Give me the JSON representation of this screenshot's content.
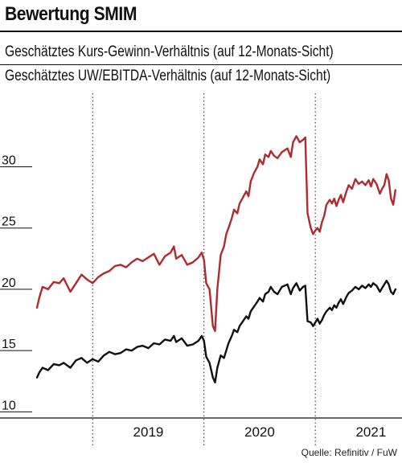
{
  "title": "Bewertung SMIM",
  "source": "Quelle: Refinitiv / FuW",
  "legend": [
    {
      "label": "Geschätztes Kurs-Gewinn-Verhältnis (auf 12-Monats-Sicht)",
      "color": "#b02a30"
    },
    {
      "label": "Geschätztes UW/EBITDA-Verhältnis (auf 12-Monats-Sicht)",
      "color": "#111111"
    }
  ],
  "chart_data": {
    "type": "line",
    "x_unit": "year (decimal)",
    "xlim": [
      2018.5,
      2021.75
    ],
    "ylim": [
      9.5,
      36
    ],
    "yticks": [
      10,
      15,
      20,
      25,
      30
    ],
    "xtick_labels": [
      {
        "label": "2019",
        "center": 2019.5
      },
      {
        "label": "2020",
        "center": 2020.5
      },
      {
        "label": "2021",
        "center": 2021.5
      }
    ],
    "grid": "vertical dotted lines at year boundaries (2019, 2020, 2021)",
    "series": [
      {
        "name": "Geschätztes Kurs-Gewinn-Verhältnis (auf 12-Monats-Sicht)",
        "color": "#b02a30",
        "points": [
          [
            2018.5,
            18.5
          ],
          [
            2018.52,
            19.3
          ],
          [
            2018.55,
            20.2
          ],
          [
            2018.6,
            20.0
          ],
          [
            2018.65,
            20.6
          ],
          [
            2018.7,
            20.5
          ],
          [
            2018.74,
            20.9
          ],
          [
            2018.8,
            19.8
          ],
          [
            2018.85,
            20.5
          ],
          [
            2018.9,
            21.2
          ],
          [
            2018.95,
            20.8
          ],
          [
            2019.0,
            20.5
          ],
          [
            2019.05,
            21.0
          ],
          [
            2019.1,
            21.3
          ],
          [
            2019.15,
            21.5
          ],
          [
            2019.2,
            21.9
          ],
          [
            2019.25,
            22.0
          ],
          [
            2019.3,
            21.8
          ],
          [
            2019.35,
            22.2
          ],
          [
            2019.4,
            22.5
          ],
          [
            2019.45,
            22.3
          ],
          [
            2019.5,
            22.6
          ],
          [
            2019.55,
            22.9
          ],
          [
            2019.6,
            22.0
          ],
          [
            2019.65,
            22.7
          ],
          [
            2019.7,
            23.0
          ],
          [
            2019.73,
            23.5
          ],
          [
            2019.75,
            22.5
          ],
          [
            2019.8,
            22.8
          ],
          [
            2019.85,
            22.0
          ],
          [
            2019.9,
            22.2
          ],
          [
            2019.95,
            22.6
          ],
          [
            2019.98,
            23.0
          ],
          [
            2020.0,
            22.4
          ],
          [
            2020.02,
            20.5
          ],
          [
            2020.05,
            20.0
          ],
          [
            2020.08,
            17.0
          ],
          [
            2020.1,
            16.6
          ],
          [
            2020.12,
            20.0
          ],
          [
            2020.15,
            22.8
          ],
          [
            2020.18,
            23.5
          ],
          [
            2020.2,
            24.5
          ],
          [
            2020.22,
            25.0
          ],
          [
            2020.25,
            25.8
          ],
          [
            2020.27,
            26.5
          ],
          [
            2020.3,
            26.2
          ],
          [
            2020.32,
            27.0
          ],
          [
            2020.35,
            27.5
          ],
          [
            2020.38,
            28.0
          ],
          [
            2020.4,
            27.6
          ],
          [
            2020.42,
            28.8
          ],
          [
            2020.45,
            29.5
          ],
          [
            2020.48,
            30.0
          ],
          [
            2020.5,
            30.6
          ],
          [
            2020.53,
            30.2
          ],
          [
            2020.55,
            31.0
          ],
          [
            2020.58,
            30.8
          ],
          [
            2020.6,
            31.3
          ],
          [
            2020.63,
            30.9
          ],
          [
            2020.66,
            30.7
          ],
          [
            2020.7,
            31.2
          ],
          [
            2020.75,
            31.5
          ],
          [
            2020.78,
            30.8
          ],
          [
            2020.8,
            32.0
          ],
          [
            2020.83,
            32.5
          ],
          [
            2020.86,
            32.0
          ],
          [
            2020.89,
            32.2
          ],
          [
            2020.91,
            32.4
          ],
          [
            2020.93,
            26.2
          ],
          [
            2020.96,
            25.0
          ],
          [
            2020.98,
            24.5
          ],
          [
            2021.0,
            24.8
          ],
          [
            2021.02,
            25.0
          ],
          [
            2021.04,
            24.7
          ],
          [
            2021.06,
            25.5
          ],
          [
            2021.08,
            26.0
          ],
          [
            2021.1,
            26.9
          ],
          [
            2021.13,
            27.3
          ],
          [
            2021.15,
            27.0
          ],
          [
            2021.17,
            27.4
          ],
          [
            2021.19,
            26.8
          ],
          [
            2021.21,
            27.3
          ],
          [
            2021.23,
            27.7
          ],
          [
            2021.25,
            27.1
          ],
          [
            2021.28,
            28.0
          ],
          [
            2021.3,
            28.5
          ],
          [
            2021.33,
            28.2
          ],
          [
            2021.36,
            29.0
          ],
          [
            2021.39,
            28.6
          ],
          [
            2021.42,
            28.8
          ],
          [
            2021.45,
            28.5
          ],
          [
            2021.48,
            28.9
          ],
          [
            2021.5,
            28.4
          ],
          [
            2021.52,
            29.0
          ],
          [
            2021.55,
            28.6
          ],
          [
            2021.58,
            27.8
          ],
          [
            2021.6,
            28.2
          ],
          [
            2021.62,
            28.5
          ],
          [
            2021.64,
            29.4
          ],
          [
            2021.66,
            28.9
          ],
          [
            2021.68,
            27.4
          ],
          [
            2021.7,
            26.9
          ],
          [
            2021.72,
            28.1
          ]
        ]
      },
      {
        "name": "Geschätztes UW/EBITDA-Verhältnis (auf 12-Monats-Sicht)",
        "color": "#111111",
        "points": [
          [
            2018.5,
            12.8
          ],
          [
            2018.52,
            13.2
          ],
          [
            2018.55,
            13.6
          ],
          [
            2018.6,
            13.4
          ],
          [
            2018.65,
            13.9
          ],
          [
            2018.7,
            13.8
          ],
          [
            2018.74,
            14.0
          ],
          [
            2018.8,
            13.6
          ],
          [
            2018.85,
            14.2
          ],
          [
            2018.9,
            14.4
          ],
          [
            2018.95,
            14.0
          ],
          [
            2019.0,
            14.3
          ],
          [
            2019.05,
            14.1
          ],
          [
            2019.1,
            14.6
          ],
          [
            2019.15,
            14.9
          ],
          [
            2019.2,
            14.7
          ],
          [
            2019.25,
            14.8
          ],
          [
            2019.3,
            15.1
          ],
          [
            2019.35,
            15.0
          ],
          [
            2019.4,
            15.3
          ],
          [
            2019.45,
            15.4
          ],
          [
            2019.5,
            15.2
          ],
          [
            2019.55,
            15.6
          ],
          [
            2019.6,
            15.5
          ],
          [
            2019.65,
            15.9
          ],
          [
            2019.7,
            15.8
          ],
          [
            2019.73,
            16.2
          ],
          [
            2019.75,
            15.7
          ],
          [
            2019.8,
            16.0
          ],
          [
            2019.85,
            15.4
          ],
          [
            2019.9,
            15.5
          ],
          [
            2019.95,
            15.8
          ],
          [
            2019.98,
            16.2
          ],
          [
            2020.0,
            15.8
          ],
          [
            2020.02,
            14.5
          ],
          [
            2020.05,
            14.0
          ],
          [
            2020.08,
            12.8
          ],
          [
            2020.1,
            12.4
          ],
          [
            2020.12,
            13.6
          ],
          [
            2020.15,
            14.6
          ],
          [
            2020.18,
            14.4
          ],
          [
            2020.2,
            15.0
          ],
          [
            2020.22,
            15.6
          ],
          [
            2020.25,
            16.2
          ],
          [
            2020.27,
            16.7
          ],
          [
            2020.3,
            16.5
          ],
          [
            2020.32,
            17.0
          ],
          [
            2020.35,
            17.4
          ],
          [
            2020.38,
            17.8
          ],
          [
            2020.4,
            17.6
          ],
          [
            2020.42,
            18.2
          ],
          [
            2020.45,
            18.6
          ],
          [
            2020.48,
            19.0
          ],
          [
            2020.5,
            19.3
          ],
          [
            2020.53,
            19.0
          ],
          [
            2020.55,
            19.6
          ],
          [
            2020.58,
            19.8
          ],
          [
            2020.6,
            20.2
          ],
          [
            2020.63,
            19.8
          ],
          [
            2020.66,
            19.6
          ],
          [
            2020.7,
            20.2
          ],
          [
            2020.75,
            20.4
          ],
          [
            2020.78,
            19.6
          ],
          [
            2020.8,
            20.1
          ],
          [
            2020.83,
            20.5
          ],
          [
            2020.86,
            19.9
          ],
          [
            2020.89,
            20.2
          ],
          [
            2020.91,
            20.3
          ],
          [
            2020.93,
            17.4
          ],
          [
            2020.96,
            17.3
          ],
          [
            2020.98,
            17.0
          ],
          [
            2021.0,
            17.3
          ],
          [
            2021.02,
            17.6
          ],
          [
            2021.04,
            17.2
          ],
          [
            2021.06,
            17.5
          ],
          [
            2021.08,
            17.9
          ],
          [
            2021.1,
            18.2
          ],
          [
            2021.13,
            18.5
          ],
          [
            2021.15,
            18.3
          ],
          [
            2021.17,
            18.7
          ],
          [
            2021.19,
            18.5
          ],
          [
            2021.21,
            18.9
          ],
          [
            2021.23,
            19.2
          ],
          [
            2021.25,
            18.8
          ],
          [
            2021.28,
            19.4
          ],
          [
            2021.3,
            19.7
          ],
          [
            2021.33,
            19.9
          ],
          [
            2021.36,
            20.2
          ],
          [
            2021.39,
            20.0
          ],
          [
            2021.42,
            20.3
          ],
          [
            2021.45,
            20.1
          ],
          [
            2021.48,
            20.4
          ],
          [
            2021.5,
            20.2
          ],
          [
            2021.52,
            20.5
          ],
          [
            2021.55,
            20.3
          ],
          [
            2021.58,
            19.8
          ],
          [
            2021.6,
            20.1
          ],
          [
            2021.62,
            20.4
          ],
          [
            2021.64,
            20.7
          ],
          [
            2021.66,
            20.4
          ],
          [
            2021.68,
            19.8
          ],
          [
            2021.7,
            19.6
          ],
          [
            2021.72,
            20.0
          ]
        ]
      }
    ]
  }
}
